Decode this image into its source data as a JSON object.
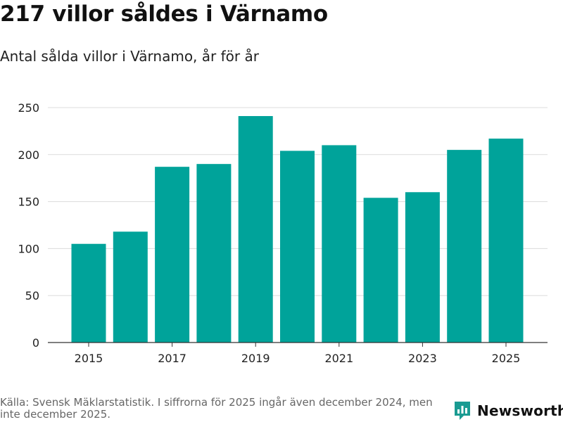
{
  "colors": {
    "bar": "#00a39a",
    "grid": "#dcdcdc",
    "axis": "#333333",
    "brand": "#1a9b92"
  },
  "chart_data": {
    "type": "bar",
    "title": "217 villor såldes i Värnamo",
    "subtitle": "Antal sålda villor i Värnamo, år för år",
    "categories": [
      "2015",
      "2016",
      "2017",
      "2018",
      "2019",
      "2020",
      "2021",
      "2022",
      "2023",
      "2024",
      "2025"
    ],
    "values": [
      105,
      118,
      187,
      190,
      241,
      204,
      210,
      154,
      160,
      205,
      217
    ],
    "x_tick_labels": [
      "2015",
      "2017",
      "2019",
      "2021",
      "2023",
      "2025"
    ],
    "y_ticks": [
      0,
      50,
      100,
      150,
      200,
      250
    ],
    "ylim": [
      0,
      250
    ],
    "xlabel": "",
    "ylabel": "",
    "grid": true,
    "legend": "none"
  },
  "footer": {
    "source": "Källa: Svensk Mäklarstatistik. I siffrorna för 2025 ingår även december 2024, men inte december 2025.",
    "logo_text": "Newsworthy",
    "logo_icon": "newsworthy-logo-icon"
  }
}
